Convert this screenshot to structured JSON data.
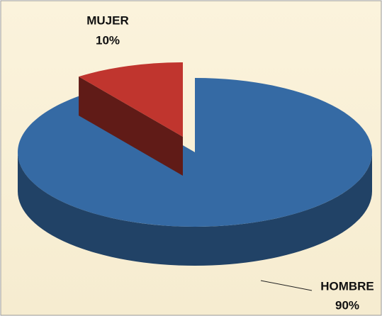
{
  "chart_data": {
    "type": "pie",
    "categories": [
      "HOMBRE",
      "MUJER"
    ],
    "values": [
      90,
      10
    ],
    "value_labels": [
      "90%",
      "10%"
    ],
    "colors": [
      "#356aa4",
      "#c0352e"
    ],
    "exploded": [
      false,
      true
    ]
  }
}
